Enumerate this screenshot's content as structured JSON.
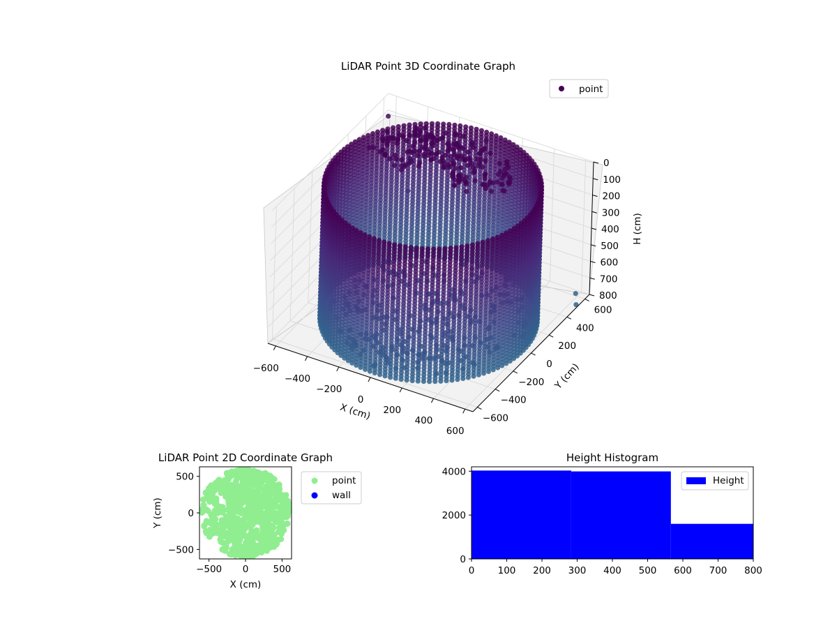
{
  "colors": {
    "scatter_3d_colormap": "viridis",
    "point_2d": "#90ee90",
    "wall_2d": "#0000ff",
    "histogram": "#0000ff",
    "pane": "#f2f2f2",
    "grid": "#d0d0d0"
  },
  "chart_data": [
    {
      "type": "scatter",
      "projection": "3d",
      "title": "LiDAR Point 3D Coordinate Graph",
      "xlabel": "X (cm)",
      "ylabel": "Y (cm)",
      "zlabel": "H (cm)",
      "x_ticks": [
        "−600",
        "−400",
        "−200",
        "0",
        "200",
        "400",
        "600"
      ],
      "y_ticks": [
        "−600",
        "−400",
        "−200",
        "0",
        "200",
        "400",
        "600"
      ],
      "z_ticks": [
        "0",
        "100",
        "200",
        "300",
        "400",
        "500",
        "600",
        "700",
        "800"
      ],
      "xlim": [
        -650,
        650
      ],
      "ylim": [
        -650,
        650
      ],
      "zlim": [
        0,
        800
      ],
      "z_axis_inverted": true,
      "grid": true,
      "legend": {
        "placement": "top-right",
        "entries": [
          "point"
        ]
      },
      "series": [
        {
          "name": "point",
          "shape": "cylindrical wall, radius ~600 cm, heights 0-800 cm, plus ceiling and floor scatter",
          "sample_points": [
            {
              "x": -600,
              "y": 0,
              "h": 50
            },
            {
              "x": 0,
              "y": 600,
              "h": 50
            },
            {
              "x": 600,
              "y": 0,
              "h": 700
            },
            {
              "x": 0,
              "y": -600,
              "h": 750
            },
            {
              "x": -400,
              "y": 450,
              "h": 400
            },
            {
              "x": 450,
              "y": -400,
              "h": 600
            },
            {
              "x": 650,
              "y": 500,
              "h": 780
            },
            {
              "x": 580,
              "y": 620,
              "h": 800
            },
            {
              "x": -620,
              "y": 600,
              "h": 100
            }
          ]
        }
      ]
    },
    {
      "type": "scatter",
      "title": "LiDAR Point 2D Coordinate Graph",
      "xlabel": "X (cm)",
      "ylabel": "Y (cm)",
      "x_ticks": [
        "−500",
        "0",
        "500"
      ],
      "y_ticks": [
        "500",
        "0",
        "−500"
      ],
      "xlim": [
        -630,
        630
      ],
      "ylim": [
        -630,
        630
      ],
      "legend": {
        "placement": "outside-right",
        "entries": [
          "point",
          "wall"
        ]
      },
      "series": [
        {
          "name": "point",
          "description": "filled disc, radius ~600 cm, with scattered gaps on the left"
        },
        {
          "name": "wall",
          "description": "no visible points"
        }
      ]
    },
    {
      "type": "bar",
      "subtype": "histogram",
      "title": "Height Histogram",
      "x_ticks": [
        "0",
        "100",
        "200",
        "300",
        "400",
        "500",
        "600",
        "700",
        "800"
      ],
      "y_ticks": [
        "0",
        "2000",
        "4000"
      ],
      "xlim": [
        0,
        800
      ],
      "ylim": [
        0,
        4200
      ],
      "legend": {
        "placement": "top-right",
        "entries": [
          "Height"
        ]
      },
      "series": [
        {
          "name": "Height",
          "bins": [
            {
              "from": 0,
              "to": 283,
              "count": 4030
            },
            {
              "from": 283,
              "to": 566,
              "count": 3990
            },
            {
              "from": 566,
              "to": 800,
              "count": 1600
            }
          ]
        }
      ]
    }
  ]
}
